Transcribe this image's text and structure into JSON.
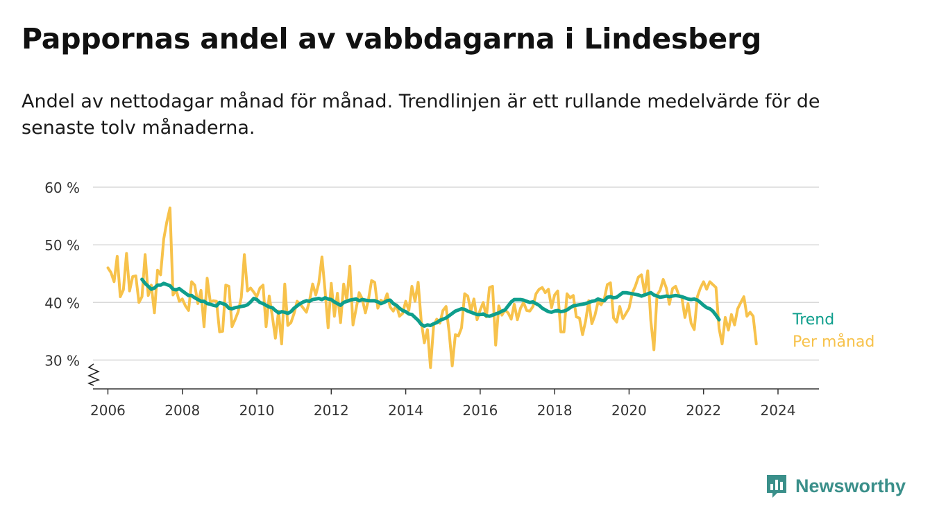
{
  "title": "Pappornas andel av vabbdagarna i Lindesberg",
  "subtitle": "Andel av nettodagar månad för månad. Trendlinjen är ett rullande medelvärde för de senaste tolv månaderna.",
  "brand": {
    "name": "Newsworthy",
    "icon": "newsworthy-logo-icon"
  },
  "colors": {
    "trend": "#0e9e8c",
    "monthly": "#f7c24b",
    "grid": "#d9d9d9",
    "axis": "#333333",
    "brand": "#3a8f8a"
  },
  "chart_data": {
    "type": "line",
    "x_start": "2006-01",
    "x_step": "month",
    "xlim": [
      2005.6,
      2025.1
    ],
    "ylim": [
      25,
      60
    ],
    "y_ticks": [
      30,
      40,
      50,
      60
    ],
    "y_tick_labels": [
      "30 %",
      "40 %",
      "50 %",
      "60 %"
    ],
    "x_ticks": [
      2006,
      2008,
      2010,
      2012,
      2014,
      2016,
      2018,
      2020,
      2022,
      2024
    ],
    "x_tick_labels": [
      "2006",
      "2008",
      "2010",
      "2012",
      "2014",
      "2016",
      "2018",
      "2020",
      "2022",
      "2024"
    ],
    "axis_break": true,
    "grid": true,
    "series": [
      {
        "name": "Per månad",
        "color": "#f7c24b",
        "values": [
          46,
          45.2,
          43.6,
          48,
          41,
          42.2,
          48.5,
          42,
          44.5,
          44.6,
          40,
          41,
          48.3,
          41.2,
          43,
          38.2,
          45.6,
          44.8,
          51,
          54,
          56.4,
          41.3,
          42.2,
          40.2,
          40.6,
          39.4,
          38.6,
          43.6,
          43,
          39.8,
          42.1,
          35.8,
          44.2,
          40.1,
          40.3,
          40.2,
          34.9,
          35,
          43,
          42.8,
          35.8,
          37,
          38.4,
          40.9,
          48.3,
          42,
          42.5,
          41.8,
          41,
          42.5,
          43,
          35.8,
          41.1,
          37.6,
          33.8,
          38.5,
          32.8,
          43.2,
          36,
          36.5,
          38.1,
          40.2,
          39.7,
          39,
          38.3,
          40.3,
          43.2,
          41.3,
          43.4,
          47.9,
          42,
          35.6,
          43.3,
          37.6,
          41.6,
          36.5,
          43.2,
          40.4,
          46.3,
          36.1,
          38.9,
          41.7,
          40.6,
          38.2,
          40.5,
          43.8,
          43.5,
          39,
          40.4,
          40,
          41.5,
          39.2,
          38.5,
          39.6,
          37.6,
          38.1,
          40.2,
          38.6,
          42.8,
          40.2,
          43.5,
          36.8,
          33,
          35.3,
          28.7,
          36,
          37.1,
          36.4,
          38.6,
          39.3,
          34.8,
          29,
          34.4,
          34.2,
          35.6,
          41.5,
          41.1,
          38.5,
          40.6,
          37,
          38.7,
          40,
          37.5,
          42.6,
          42.8,
          32.6,
          39.4,
          37.8,
          38.7,
          38.2,
          37.1,
          39.7,
          37,
          39,
          40,
          38.6,
          38.5,
          39.3,
          41.5,
          42.3,
          42.6,
          41.7,
          42.3,
          39.1,
          41.3,
          42,
          34.9,
          34.9,
          41.5,
          40.8,
          41.2,
          37.5,
          37.3,
          34.4,
          36.8,
          40.3,
          36.3,
          37.8,
          40.1,
          39.6,
          40.6,
          43.1,
          43.4,
          37.3,
          36.6,
          39.3,
          37.2,
          38.1,
          39,
          41.6,
          42.8,
          44.4,
          44.8,
          41.6,
          45.5,
          36.9,
          31.8,
          41.3,
          42.1,
          44,
          42.5,
          39.7,
          42.4,
          42.8,
          41.3,
          40.9,
          37.4,
          39.8,
          36.4,
          35.3,
          41,
          42.5,
          43.6,
          42.3,
          43.6,
          43.1,
          42.6,
          35.5,
          32.8,
          37.4,
          35.2,
          37.9,
          36.1,
          38.9,
          40,
          41,
          37.6,
          38.3,
          37.6,
          32.8
        ]
      },
      {
        "name": "Trend",
        "color": "#0e9e8c",
        "start": "2006-12",
        "values": [
          44,
          43.3,
          42.8,
          42.3,
          42.5,
          43,
          43,
          43.3,
          43.1,
          42.9,
          42.3,
          42.2,
          42.4,
          42,
          41.6,
          41.2,
          41.2,
          40.8,
          40.5,
          40.2,
          40.2,
          39.8,
          39.7,
          39.5,
          39.4,
          40,
          39.8,
          39.6,
          39,
          38.9,
          39.1,
          39.2,
          39.3,
          39.4,
          39.6,
          40.1,
          40.7,
          40.5,
          40,
          39.8,
          39.5,
          39.2,
          39.1,
          38.6,
          38.2,
          38.4,
          38.3,
          38.1,
          38.4,
          39,
          39.4,
          39.8,
          40.1,
          40.3,
          40.2,
          40.5,
          40.6,
          40.7,
          40.5,
          40.8,
          40.6,
          40.5,
          40.1,
          39.8,
          39.5,
          40,
          40.2,
          40.4,
          40.5,
          40.6,
          40.3,
          40.5,
          40.4,
          40.3,
          40.3,
          40.3,
          40.1,
          39.8,
          40,
          40.3,
          40.4,
          39.8,
          39.5,
          39,
          38.6,
          38.4,
          38,
          37.9,
          37.4,
          36.9,
          36.2,
          35.9,
          36.1,
          36,
          36.3,
          36.5,
          36.9,
          37.1,
          37.3,
          37.7,
          38.1,
          38.5,
          38.7,
          38.9,
          38.8,
          38.5,
          38.3,
          38.1,
          37.9,
          37.9,
          38,
          37.7,
          37.6,
          37.8,
          38,
          38.2,
          38.5,
          38.7,
          39.4,
          40.1,
          40.5,
          40.5,
          40.5,
          40.4,
          40.2,
          40,
          40.1,
          39.8,
          39.5,
          39,
          38.7,
          38.4,
          38.3,
          38.5,
          38.6,
          38.4,
          38.5,
          38.7,
          39.1,
          39.4,
          39.5,
          39.6,
          39.7,
          39.8,
          40,
          40.2,
          40.3,
          40.6,
          40.4,
          40.3,
          40.9,
          41,
          40.8,
          40.9,
          41.3,
          41.7,
          41.7,
          41.6,
          41.5,
          41.4,
          41.3,
          41.1,
          41.3,
          41.5,
          41.7,
          41.3,
          41.1,
          40.9,
          41,
          41.1,
          41,
          41.1,
          41.2,
          41.1,
          41,
          40.8,
          40.6,
          40.5,
          40.6,
          40.4,
          40,
          39.5,
          39.1,
          38.9,
          38.5,
          37.8,
          37
        ]
      }
    ],
    "series_labels": [
      "Trend",
      "Per månad"
    ]
  }
}
